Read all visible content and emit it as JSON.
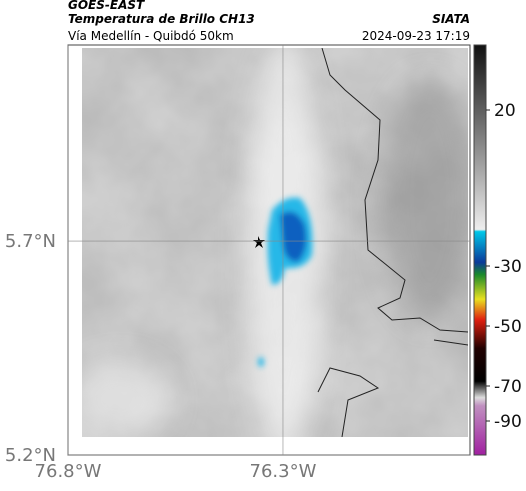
{
  "header": {
    "title": "GOES-EAST",
    "subtitle": "Temperatura de Brillo CH13",
    "region": "Vía Medellín - Quibdó 50km",
    "source": "SIATA",
    "timestamp": "2024-09-23 17:19"
  },
  "map": {
    "xlim": [
      -76.8,
      -75.865
    ],
    "ylim": [
      5.2,
      6.158
    ],
    "xticks": [
      {
        "value": -76.8,
        "label": "76.8°W"
      },
      {
        "value": -76.3,
        "label": "76.3°W"
      }
    ],
    "yticks": [
      {
        "value": 5.7,
        "label": "5.7°N"
      },
      {
        "value": 5.2,
        "label": "5.2°N"
      }
    ]
  },
  "colorbar": {
    "ticks": [
      20,
      -30,
      -50,
      -70,
      -90
    ]
  }
}
